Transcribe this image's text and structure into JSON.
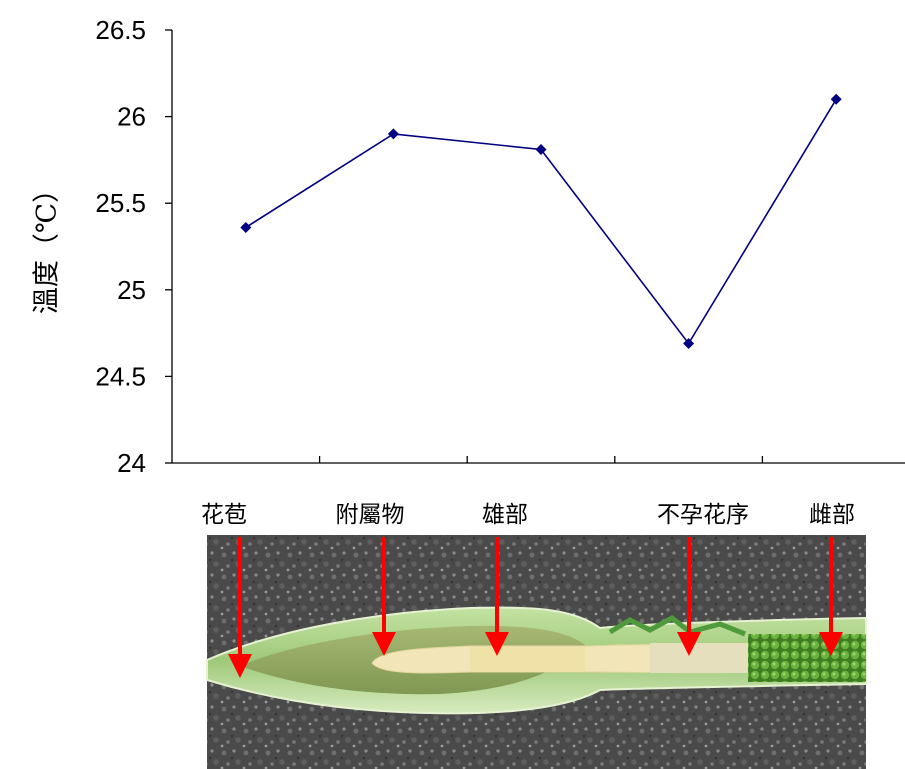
{
  "chart_data": {
    "type": "line",
    "categories": [
      "花苞",
      "附屬物",
      "雄部",
      "不孕花序",
      "雌部"
    ],
    "series": [
      {
        "values": [
          25.36,
          25.9,
          25.81,
          24.69,
          26.1
        ]
      }
    ],
    "ylabel": "溫度（℃）",
    "xlabel": "",
    "ylim": [
      24,
      26.5
    ],
    "yticks": [
      "24",
      "24.5",
      "25",
      "25.5",
      "26",
      "26.5"
    ],
    "grid": false,
    "legend": "none",
    "series_color": "#000080",
    "image": {
      "description": "plant",
      "annotation_arrows_color": "#ff0000"
    }
  }
}
